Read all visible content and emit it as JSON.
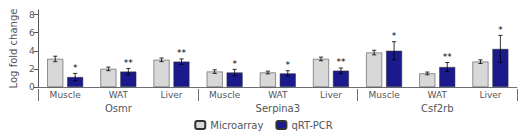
{
  "chart_data": {
    "type": "bar",
    "categories": [
      "Muscle",
      "WAT",
      "Liver",
      "Muscle",
      "WAT",
      "Liver",
      "Muscle",
      "WAT",
      "Liver"
    ],
    "groups": [
      "Osmr",
      "Serpina3",
      "Csf2rb"
    ],
    "series": [
      {
        "name": "Microarray",
        "color": "#d8d8d8",
        "values": [
          3.1,
          2.0,
          3.0,
          1.7,
          1.6,
          3.1,
          3.8,
          1.5,
          2.8
        ],
        "errors": [
          0.3,
          0.2,
          0.2,
          0.2,
          0.15,
          0.2,
          0.25,
          0.15,
          0.2
        ]
      },
      {
        "name": "qRT-PCR",
        "color": "#1a1a8c",
        "values": [
          1.1,
          1.7,
          2.8,
          1.6,
          1.5,
          1.8,
          4.0,
          2.2,
          4.2
        ],
        "errors": [
          0.4,
          0.35,
          0.3,
          0.35,
          0.3,
          0.3,
          1.0,
          0.5,
          1.5
        ],
        "annotations": [
          "*",
          "**",
          "**",
          "*",
          "*",
          "**",
          "*",
          "**",
          "*"
        ]
      }
    ],
    "ylabel": "Log fold change",
    "ylim": [
      0,
      8.5
    ],
    "yticks": [
      0,
      2,
      4,
      6,
      8
    ],
    "grid": false,
    "legend": "bottom"
  }
}
